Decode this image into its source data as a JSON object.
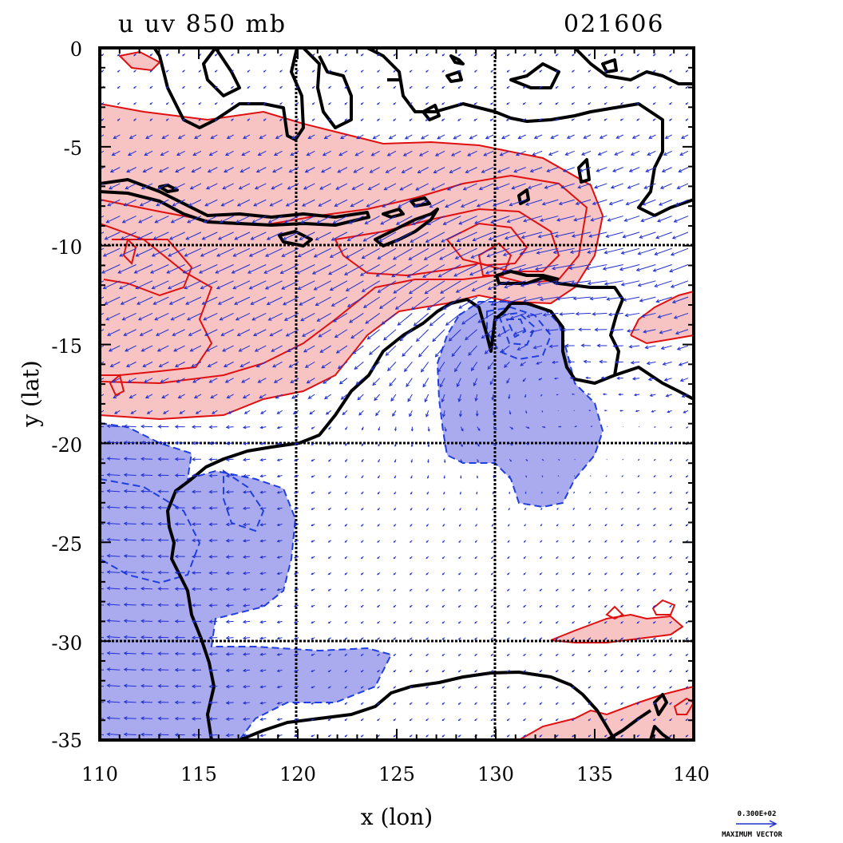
{
  "header": {
    "field_label": "u uv 850 mb",
    "date_code": "021606"
  },
  "chart_data": {
    "type": "contour-vector",
    "xlabel": "x (lon)",
    "ylabel": "y (lat)",
    "xlim": [
      110,
      140
    ],
    "ylim": [
      -35,
      0
    ],
    "x_ticks": [
      "110",
      "115",
      "120",
      "125",
      "130",
      "135",
      "140"
    ],
    "y_ticks": [
      "0",
      "-5",
      "-10",
      "-15",
      "-20",
      "-25",
      "-30",
      "-35"
    ],
    "grid_lon": [
      120,
      130
    ],
    "grid_lat": [
      -10,
      -20,
      -30
    ],
    "positive_color": "#f7c3c3",
    "positive_line": "#e01010",
    "negative_color": "#aaaaee",
    "negative_line": "#1f3fe0",
    "vector_color": "#2030d0",
    "coast_color": "#000000",
    "reference_vector": {
      "value": "0.300E+02",
      "label": "MAXIMUM VECTOR"
    }
  }
}
